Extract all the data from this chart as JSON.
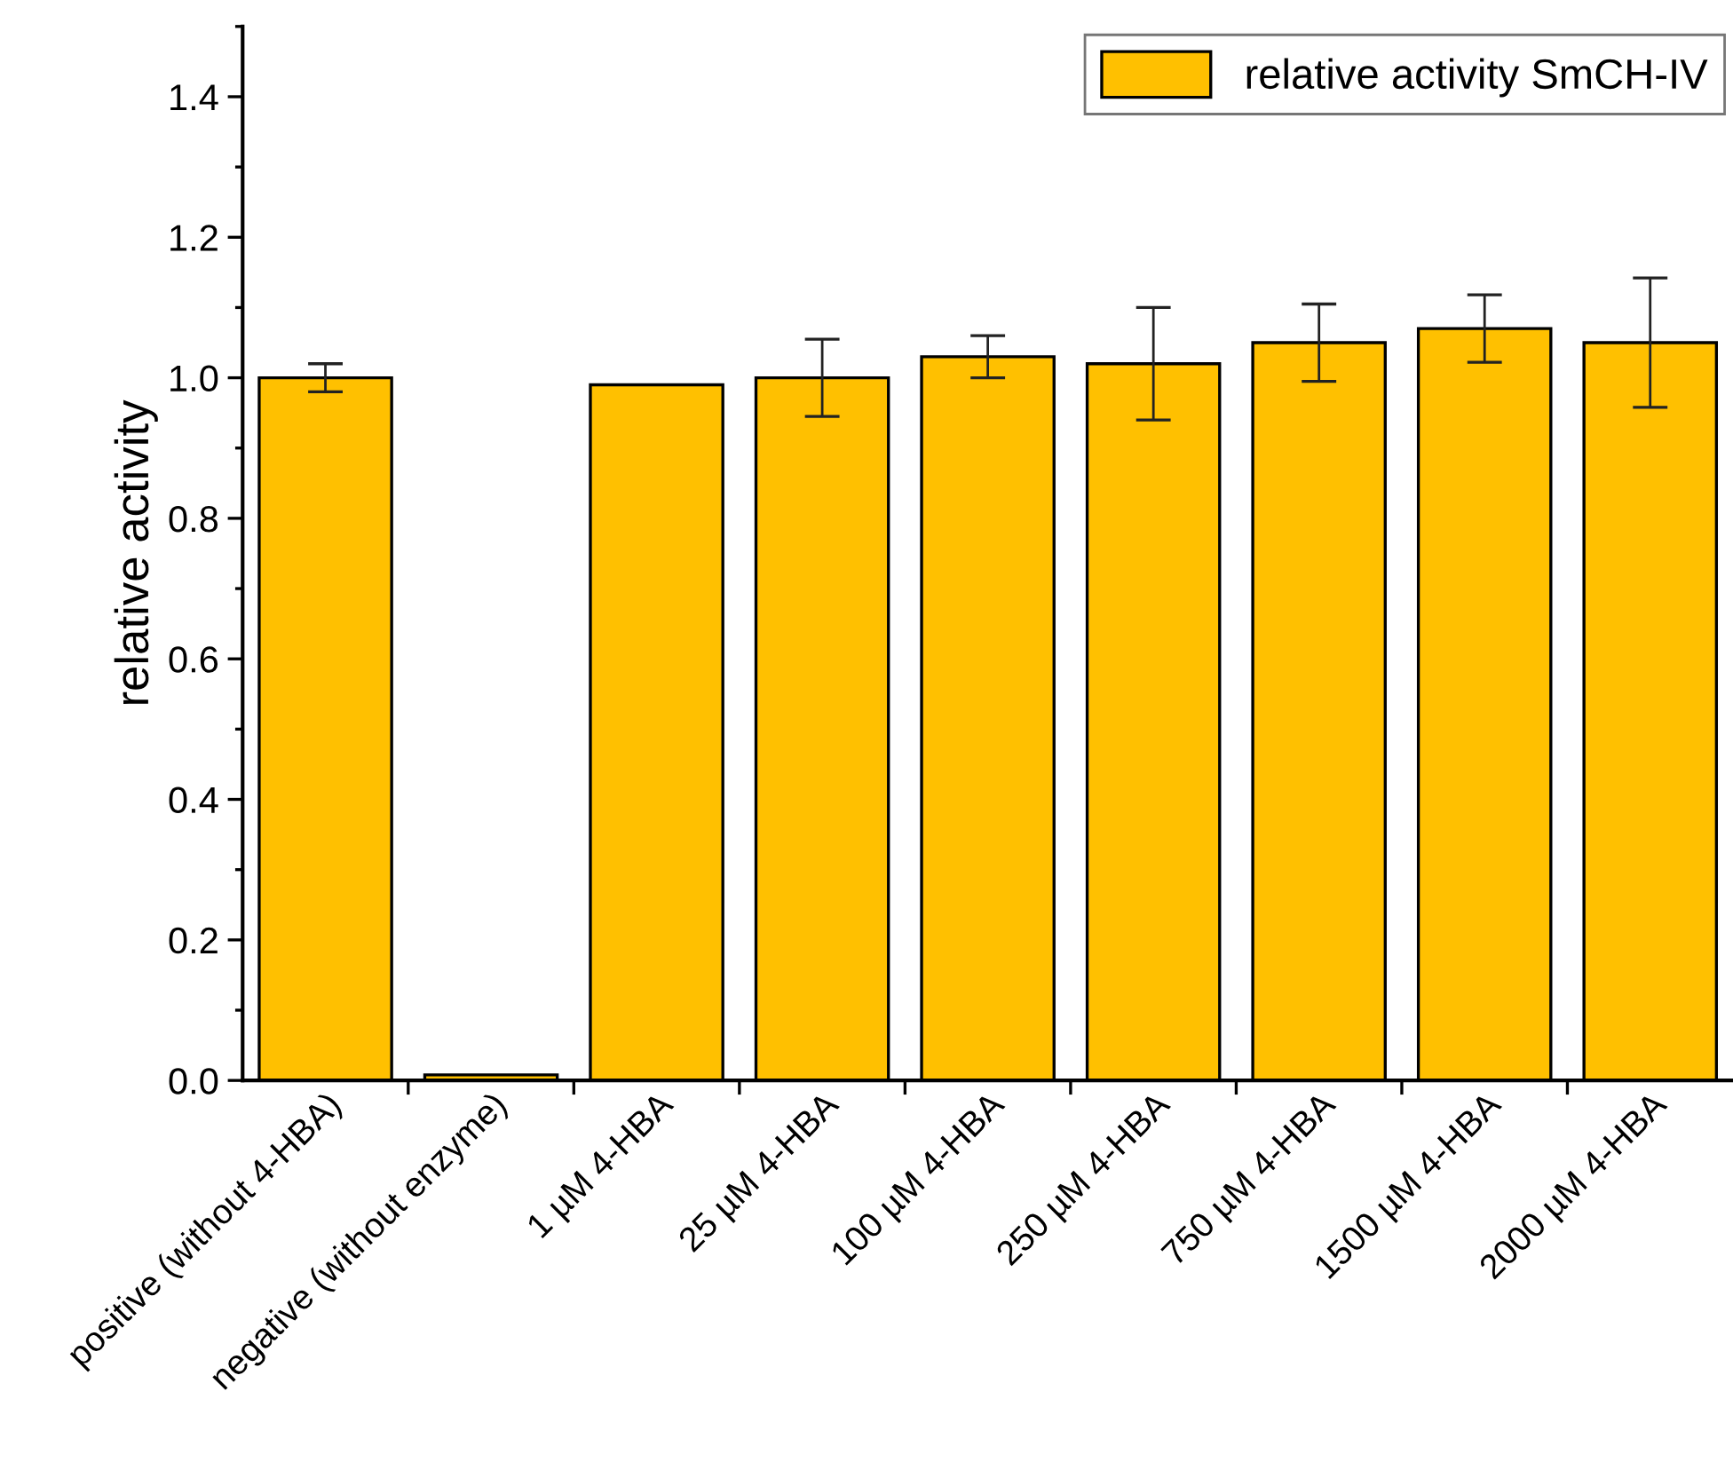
{
  "chart_data": {
    "type": "bar",
    "ylabel": "relative activity",
    "categories": [
      "positive (without 4-HBA)",
      "negative (without enzyme)",
      "1 µM 4-HBA",
      "25 µM 4-HBA",
      "100 µM 4-HBA",
      "250 µM 4-HBA",
      "750 µM 4-HBA",
      "1500 µM 4-HBA",
      "2000 µM 4-HBA"
    ],
    "series": [
      {
        "name": "relative activity SmCH-IV",
        "color": "#ffc000",
        "values": [
          1.0,
          0.008,
          0.99,
          1.0,
          1.03,
          1.02,
          1.05,
          1.07,
          1.05
        ],
        "errors": [
          0.02,
          null,
          null,
          0.055,
          0.03,
          0.08,
          0.055,
          0.048,
          0.092
        ]
      }
    ],
    "ylim": [
      0,
      1.5
    ],
    "yticks": [
      {
        "value": 0,
        "label": "0.0"
      },
      0.2,
      0.4,
      0.6,
      0.8,
      {
        "value": 1,
        "label": "1.0"
      },
      1.2,
      1.4
    ],
    "legend": "top right",
    "grid": false
  }
}
